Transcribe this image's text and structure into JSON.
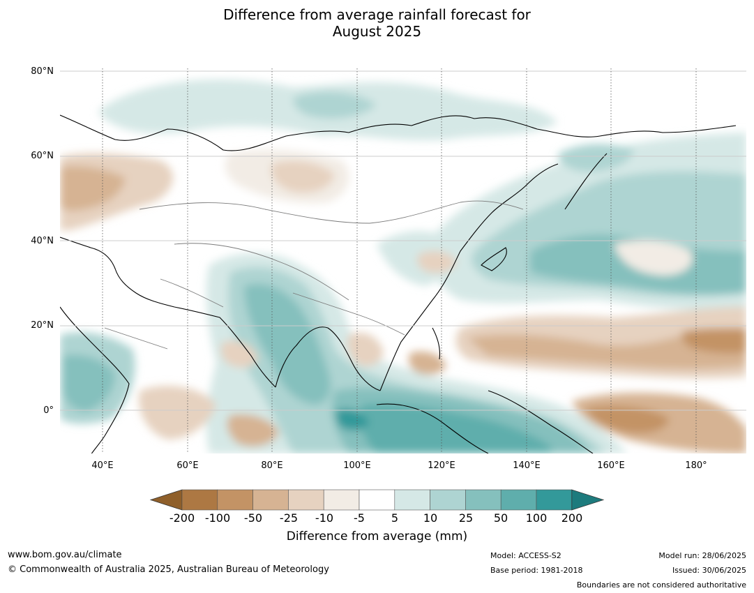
{
  "title": {
    "line1": "Difference from average rainfall forecast for",
    "line2": "August 2025"
  },
  "map": {
    "lat_labels": [
      "80°N",
      "60°N",
      "40°N",
      "20°N",
      "0°"
    ],
    "lon_labels": [
      "40°E",
      "60°E",
      "80°E",
      "100°E",
      "120°E",
      "140°E",
      "160°E",
      "180°"
    ],
    "extent": {
      "lon": [
        30,
        192
      ],
      "lat": [
        -10,
        81
      ]
    }
  },
  "legend": {
    "tick_labels": [
      "-200",
      "-100",
      "-50",
      "-25",
      "-10",
      "-5",
      "5",
      "10",
      "25",
      "50",
      "100",
      "200"
    ],
    "colors": [
      "#8f5f2a",
      "#ad7843",
      "#c39365",
      "#d6b393",
      "#e6d2c0",
      "#f2ece5",
      "#ffffff",
      "#d5e8e6",
      "#aed4d2",
      "#85c0bd",
      "#5faeac",
      "#33999a",
      "#1d7b7d"
    ],
    "title": "Difference from average (mm)"
  },
  "footer": {
    "website": "www.bom.gov.au/climate",
    "copyright": "© Commonwealth of Australia 2025, Australian Bureau of Meteorology",
    "model": "Model: ACCESS-S2",
    "base_period": "Base period: 1981-2018",
    "model_run": "Model run: 28/06/2025",
    "issued": "Issued: 30/06/2025",
    "disclaimer": "Boundaries are not considered authoritative"
  }
}
